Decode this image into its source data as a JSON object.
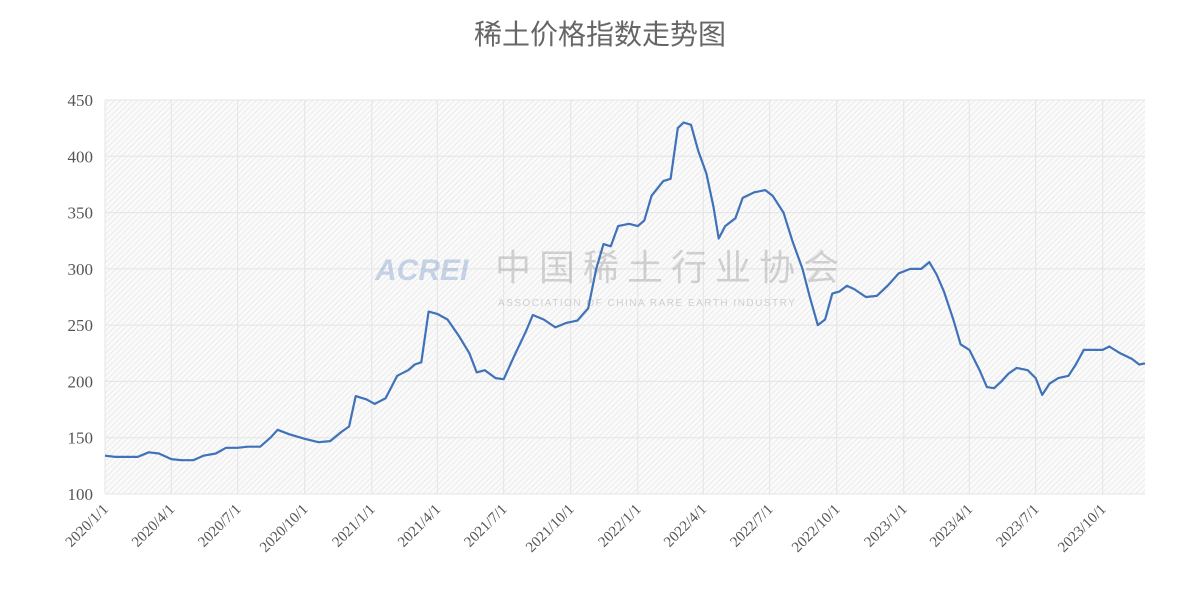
{
  "chart_data": {
    "type": "line",
    "title": "稀土价格指数走势图",
    "watermark": {
      "brand": "ACREI",
      "name": "中国稀土行业协会",
      "subtitle": "ASSOCIATION OF CHINA RARE EARTH INDUSTRY"
    },
    "x": [
      "2020/1/1",
      "2020/1/15",
      "2020/2/1",
      "2020/2/15",
      "2020/3/1",
      "2020/3/15",
      "2020/4/1",
      "2020/4/15",
      "2020/5/1",
      "2020/5/15",
      "2020/6/1",
      "2020/6/15",
      "2020/7/1",
      "2020/7/15",
      "2020/8/1",
      "2020/8/15",
      "2020/8/25",
      "2020/9/10",
      "2020/10/1",
      "2020/10/20",
      "2020/11/5",
      "2020/11/20",
      "2020/12/1",
      "2020/12/10",
      "2020/12/25",
      "2021/1/5",
      "2021/1/20",
      "2021/2/5",
      "2021/2/20",
      "2021/3/1",
      "2021/3/10",
      "2021/3/20",
      "2021/4/1",
      "2021/4/15",
      "2021/5/1",
      "2021/5/15",
      "2021/5/25",
      "2021/6/5",
      "2021/6/20",
      "2021/7/1",
      "2021/7/15",
      "2021/8/1",
      "2021/8/10",
      "2021/8/25",
      "2021/9/10",
      "2021/9/25",
      "2021/10/10",
      "2021/10/25",
      "2021/11/5",
      "2021/11/15",
      "2021/11/25",
      "2021/12/5",
      "2021/12/20",
      "2022/1/1",
      "2022/1/10",
      "2022/1/20",
      "2022/2/5",
      "2022/2/15",
      "2022/2/25",
      "2022/3/5",
      "2022/3/15",
      "2022/3/25",
      "2022/4/5",
      "2022/4/15",
      "2022/4/22",
      "2022/5/1",
      "2022/5/15",
      "2022/5/25",
      "2022/6/10",
      "2022/6/25",
      "2022/7/5",
      "2022/7/20",
      "2022/8/1",
      "2022/8/15",
      "2022/8/25",
      "2022/9/5",
      "2022/9/15",
      "2022/9/25",
      "2022/10/5",
      "2022/10/15",
      "2022/10/25",
      "2022/11/10",
      "2022/11/25",
      "2022/12/10",
      "2022/12/25",
      "2023/1/10",
      "2023/1/25",
      "2023/2/5",
      "2023/2/15",
      "2023/2/25",
      "2023/3/10",
      "2023/3/20",
      "2023/4/1",
      "2023/4/15",
      "2023/4/25",
      "2023/5/5",
      "2023/5/15",
      "2023/5/25",
      "2023/6/5",
      "2023/6/20",
      "2023/7/1",
      "2023/7/10",
      "2023/7/20",
      "2023/8/1",
      "2023/8/15",
      "2023/8/25",
      "2023/9/5",
      "2023/9/20",
      "2023/10/1",
      "2023/10/10",
      "2023/10/25",
      "2023/11/10",
      "2023/11/20",
      "2023/11/28"
    ],
    "values": [
      134,
      133,
      133,
      133,
      137,
      136,
      131,
      130,
      130,
      134,
      136,
      141,
      141,
      142,
      142,
      150,
      157,
      153,
      149,
      146,
      147,
      155,
      160,
      187,
      184,
      180,
      185,
      205,
      210,
      215,
      217,
      262,
      260,
      255,
      240,
      225,
      208,
      210,
      203,
      202,
      222,
      245,
      259,
      255,
      248,
      252,
      254,
      265,
      300,
      322,
      320,
      338,
      340,
      338,
      343,
      365,
      378,
      380,
      425,
      430,
      428,
      405,
      385,
      355,
      327,
      338,
      345,
      363,
      368,
      370,
      365,
      350,
      325,
      300,
      275,
      250,
      255,
      278,
      280,
      285,
      282,
      275,
      276,
      285,
      296,
      300,
      300,
      306,
      295,
      280,
      255,
      233,
      228,
      210,
      195,
      194,
      200,
      207,
      212,
      210,
      203,
      188,
      198,
      203,
      205,
      215,
      228,
      228,
      228,
      231,
      225,
      220,
      215,
      216
    ],
    "color": "#3f72b8",
    "xlim": [
      "2020/1/1",
      "2023/11/28"
    ],
    "xticks": [
      "2020/1/1",
      "2020/4/1",
      "2020/7/1",
      "2020/10/1",
      "2021/1/1",
      "2021/4/1",
      "2021/7/1",
      "2021/10/1",
      "2022/1/1",
      "2022/4/1",
      "2022/7/1",
      "2022/10/1",
      "2023/1/1",
      "2023/4/1",
      "2023/7/1",
      "2023/10/1"
    ],
    "ylim": [
      100,
      450
    ],
    "yticks": [
      100,
      150,
      200,
      250,
      300,
      350,
      400,
      450
    ],
    "grid": true
  }
}
